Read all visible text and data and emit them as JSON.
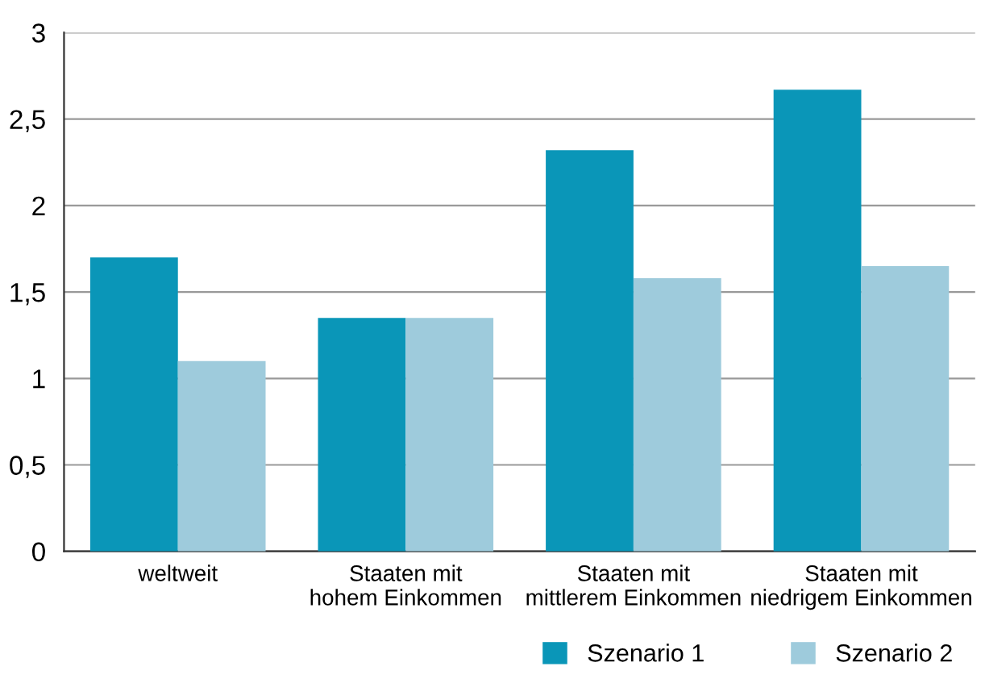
{
  "chart_data": {
    "type": "bar",
    "categories": [
      "weltweit",
      "Staaten mit\nhohem Einkommen",
      "Staaten mit\nmittlerem Einkommen",
      "Staaten mit\nniedrigem Einkommen"
    ],
    "series": [
      {
        "name": "Szenario 1",
        "color": "#0a96b8",
        "values": [
          1.7,
          1.35,
          2.32,
          2.67
        ]
      },
      {
        "name": "Szenario 2",
        "color": "#9ecbdc",
        "values": [
          1.1,
          1.35,
          1.58,
          1.65
        ]
      }
    ],
    "ylim": [
      0,
      3
    ],
    "yticks": [
      0,
      {
        "value": 0.5,
        "label": "0,5"
      },
      1,
      {
        "value": 1.5,
        "label": "1,5"
      },
      2,
      {
        "value": 2.5,
        "label": "2,5"
      },
      3
    ],
    "grid": "y",
    "legend": "bottom right"
  }
}
